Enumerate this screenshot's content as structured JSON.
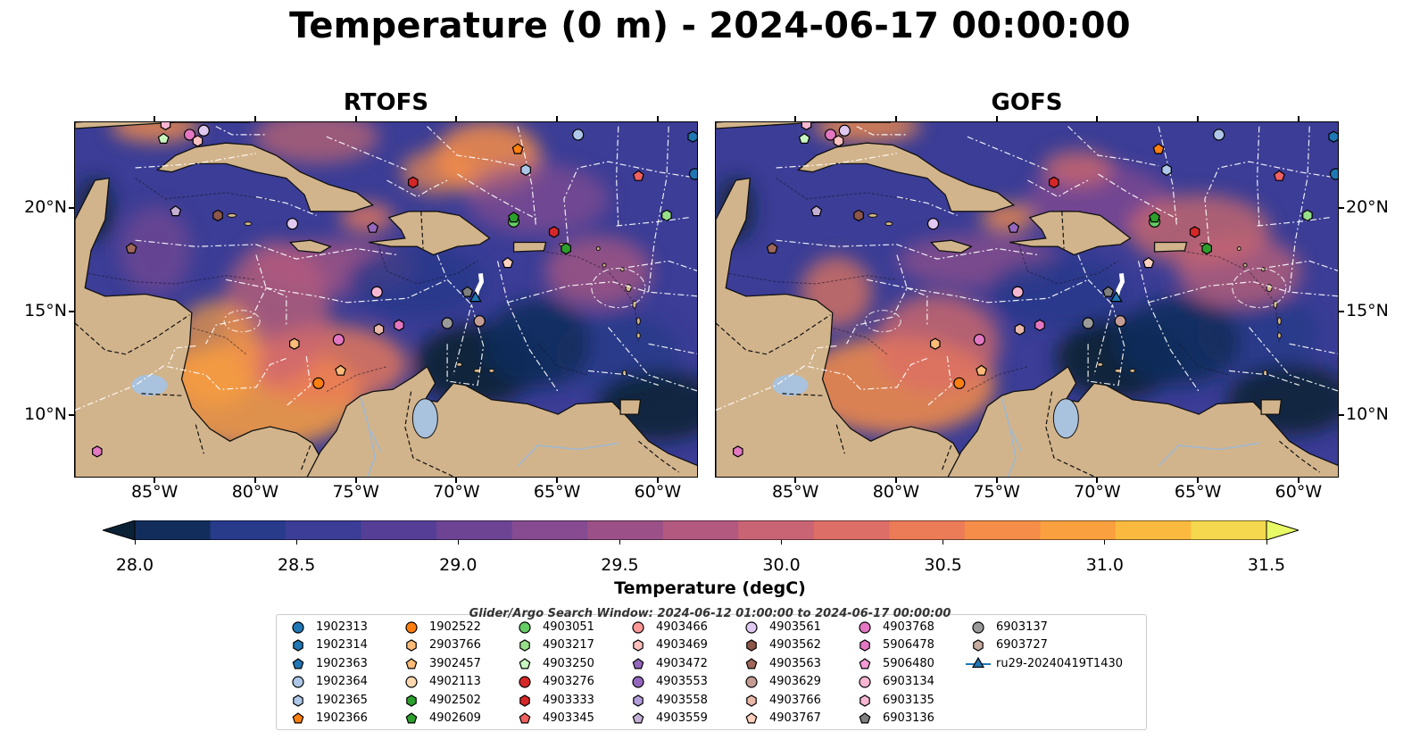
{
  "title": "Temperature (0 m) - 2024-06-17 00:00:00",
  "panels": [
    {
      "name": "RTOFS",
      "variant": "rtofs"
    },
    {
      "name": "GOFS",
      "variant": "gofs"
    }
  ],
  "lon_ticks": [
    "85°W",
    "80°W",
    "75°W",
    "70°W",
    "65°W",
    "60°W"
  ],
  "lon_tick_values": [
    -85,
    -80,
    -75,
    -70,
    -65,
    -60
  ],
  "lat_ticks": [
    "20°N",
    "15°N",
    "10°N"
  ],
  "lat_tick_values": [
    20,
    15,
    10
  ],
  "map_extent": {
    "lon": [
      -89,
      -58
    ],
    "lat": [
      7,
      24.2
    ]
  },
  "colorbar": {
    "label": "Temperature (degC)",
    "range": [
      28.0,
      31.5
    ],
    "ticks": [
      "28.0",
      "28.5",
      "29.0",
      "29.5",
      "30.0",
      "30.5",
      "31.0",
      "31.5"
    ],
    "colors": [
      "#0b2236",
      "#122d5c",
      "#283a8a",
      "#3b3d96",
      "#553f96",
      "#6d4494",
      "#864b90",
      "#9b5188",
      "#b3597f",
      "#c96474",
      "#dc6e67",
      "#ec7b57",
      "#f68d48",
      "#fba03f",
      "#fbba3f",
      "#f5d84d",
      "#e8fa66"
    ],
    "under_color": "#0b2236",
    "over_color": "#e8fa66"
  },
  "colors": {
    "land": "#d2b48c",
    "lake": "#a9c2dd",
    "river": "#a0b8d0",
    "track": "#ffffff"
  },
  "legend_title": "Glider/Argo Search Window: 2024-06-12 01:00:00 to 2024-06-17 00:00:00",
  "legend": [
    {
      "label": "1902313",
      "color": "#1f77b4",
      "shape": "circle"
    },
    {
      "label": "1902314",
      "color": "#1f77b4",
      "shape": "hexagon"
    },
    {
      "label": "1902363",
      "color": "#1f77b4",
      "shape": "pentagon"
    },
    {
      "label": "1902364",
      "color": "#aec7e8",
      "shape": "circle"
    },
    {
      "label": "1902365",
      "color": "#aec7e8",
      "shape": "hexagon"
    },
    {
      "label": "1902366",
      "color": "#ff7f0e",
      "shape": "pentagon"
    },
    {
      "label": "1902522",
      "color": "#ff7f0e",
      "shape": "circle"
    },
    {
      "label": "2903766",
      "color": "#ffbb78",
      "shape": "hexagon"
    },
    {
      "label": "3902457",
      "color": "#ffbb78",
      "shape": "pentagon"
    },
    {
      "label": "4902113",
      "color": "#ffd8b0",
      "shape": "circle"
    },
    {
      "label": "4902502",
      "color": "#2ca02c",
      "shape": "hexagon"
    },
    {
      "label": "4902609",
      "color": "#2ca02c",
      "shape": "pentagon"
    },
    {
      "label": "4903051",
      "color": "#66cc66",
      "shape": "circle"
    },
    {
      "label": "4903217",
      "color": "#98df8a",
      "shape": "hexagon"
    },
    {
      "label": "4903250",
      "color": "#c8f5c0",
      "shape": "pentagon"
    },
    {
      "label": "4903276",
      "color": "#d62728",
      "shape": "circle"
    },
    {
      "label": "4903333",
      "color": "#d62728",
      "shape": "hexagon"
    },
    {
      "label": "4903345",
      "color": "#f06060",
      "shape": "pentagon"
    },
    {
      "label": "4903466",
      "color": "#ff9896",
      "shape": "circle"
    },
    {
      "label": "4903469",
      "color": "#ffc0c0",
      "shape": "hexagon"
    },
    {
      "label": "4903472",
      "color": "#9467bd",
      "shape": "pentagon"
    },
    {
      "label": "4903553",
      "color": "#9467bd",
      "shape": "circle"
    },
    {
      "label": "4903558",
      "color": "#b39ddb",
      "shape": "hexagon"
    },
    {
      "label": "4903559",
      "color": "#c5b0d5",
      "shape": "pentagon"
    },
    {
      "label": "4903561",
      "color": "#e0c8f0",
      "shape": "circle"
    },
    {
      "label": "4903562",
      "color": "#8c564b",
      "shape": "hexagon"
    },
    {
      "label": "4903563",
      "color": "#a0685a",
      "shape": "pentagon"
    },
    {
      "label": "4903629",
      "color": "#c49c94",
      "shape": "circle"
    },
    {
      "label": "4903766",
      "color": "#e8b8a8",
      "shape": "hexagon"
    },
    {
      "label": "4903767",
      "color": "#ffd0c0",
      "shape": "pentagon"
    },
    {
      "label": "4903768",
      "color": "#e377c2",
      "shape": "circle"
    },
    {
      "label": "5906478",
      "color": "#e377c2",
      "shape": "hexagon"
    },
    {
      "label": "5906480",
      "color": "#f49ad4",
      "shape": "pentagon"
    },
    {
      "label": "6903134",
      "color": "#f7b6d2",
      "shape": "circle"
    },
    {
      "label": "6903135",
      "color": "#f7b6d2",
      "shape": "hexagon"
    },
    {
      "label": "6903136",
      "color": "#7f7f7f",
      "shape": "pentagon"
    },
    {
      "label": "6903137",
      "color": "#9a9a9a",
      "shape": "circle"
    },
    {
      "label": "6903727",
      "color": "#c7aca0",
      "shape": "hexagon"
    },
    {
      "label": "ru29-20240419T1430",
      "color": "#1f77b4",
      "shape": "triangle-line"
    }
  ],
  "markers": [
    {
      "label": "6903135",
      "lon": -84.5,
      "lat": 24.1,
      "gofs_shift": [
        0,
        0
      ]
    },
    {
      "label": "4903250",
      "lon": -84.6,
      "lat": 23.4,
      "gofs_shift": [
        0,
        0
      ]
    },
    {
      "label": "4903768",
      "lon": -83.3,
      "lat": 23.6,
      "gofs_shift": [
        0,
        0
      ]
    },
    {
      "label": "4903561",
      "lon": -82.6,
      "lat": 23.8,
      "gofs_shift": [
        0,
        0
      ]
    },
    {
      "label": "4903469",
      "lon": -82.9,
      "lat": 23.3,
      "gofs_shift": [
        0,
        0
      ]
    },
    {
      "label": "4903559",
      "lon": -84.0,
      "lat": 19.9,
      "gofs_shift": [
        0,
        0
      ]
    },
    {
      "label": "4903562",
      "lon": -81.9,
      "lat": 19.7,
      "gofs_shift": [
        0,
        0
      ]
    },
    {
      "label": "4903563",
      "lon": -86.2,
      "lat": 18.1,
      "gofs_shift": [
        0,
        0
      ]
    },
    {
      "label": "4903561",
      "lon": -78.2,
      "lat": 19.3,
      "gofs_shift": [
        0,
        0
      ]
    },
    {
      "label": "4903333",
      "lon": -72.2,
      "lat": 21.3,
      "gofs_shift": [
        0,
        0
      ]
    },
    {
      "label": "4903472",
      "lon": -74.2,
      "lat": 19.1,
      "gofs_shift": [
        0,
        0
      ]
    },
    {
      "label": "4903051",
      "lon": -67.2,
      "lat": 19.4,
      "gofs_shift": [
        0,
        0
      ]
    },
    {
      "label": "4902609",
      "lon": -67.2,
      "lat": 19.6,
      "gofs_shift": [
        0,
        0
      ]
    },
    {
      "label": "1902366",
      "lon": -67.0,
      "lat": 22.9,
      "gofs_shift": [
        0,
        0
      ]
    },
    {
      "label": "1902364",
      "lon": -64.0,
      "lat": 23.6,
      "gofs_shift": [
        0,
        0
      ]
    },
    {
      "label": "1902365",
      "lon": -66.6,
      "lat": 21.9,
      "gofs_shift": [
        0,
        0
      ]
    },
    {
      "label": "4903345",
      "lon": -61.0,
      "lat": 21.6,
      "gofs_shift": [
        0,
        0
      ]
    },
    {
      "label": "1902313",
      "lon": -58.2,
      "lat": 21.7,
      "gofs_shift": [
        0,
        0
      ]
    },
    {
      "label": "1902314",
      "lon": -58.3,
      "lat": 23.5,
      "gofs_shift": [
        0,
        0
      ]
    },
    {
      "label": "4903217",
      "lon": -59.6,
      "lat": 19.7,
      "gofs_shift": [
        0,
        0
      ]
    },
    {
      "label": "4903333",
      "lon": -65.2,
      "lat": 18.9,
      "gofs_shift": [
        0,
        0
      ]
    },
    {
      "label": "4902502",
      "lon": -64.6,
      "lat": 18.1,
      "gofs_shift": [
        0,
        0
      ]
    },
    {
      "label": "4903767",
      "lon": -67.5,
      "lat": 17.4,
      "gofs_shift": [
        0,
        0
      ]
    },
    {
      "label": "6903134",
      "lon": -74.0,
      "lat": 16.0,
      "gofs_shift": [
        0,
        0
      ]
    },
    {
      "label": "6903136",
      "lon": -69.5,
      "lat": 16.0,
      "gofs_shift": [
        0,
        0
      ]
    },
    {
      "label": "6903137",
      "lon": -70.5,
      "lat": 14.5,
      "gofs_shift": [
        0,
        0
      ]
    },
    {
      "label": "4903629",
      "lon": -68.9,
      "lat": 14.6,
      "gofs_shift": [
        0,
        0
      ]
    },
    {
      "label": "5906478",
      "lon": -72.9,
      "lat": 14.4,
      "gofs_shift": [
        0,
        0
      ]
    },
    {
      "label": "4903766",
      "lon": -73.9,
      "lat": 14.2,
      "gofs_shift": [
        0,
        0
      ]
    },
    {
      "label": "4903768",
      "lon": -75.9,
      "lat": 13.7,
      "gofs_shift": [
        0,
        0
      ]
    },
    {
      "label": "2903766",
      "lon": -78.1,
      "lat": 13.5,
      "gofs_shift": [
        0,
        0
      ]
    },
    {
      "label": "3902457",
      "lon": -75.8,
      "lat": 12.2,
      "gofs_shift": [
        0,
        0
      ]
    },
    {
      "label": "1902522",
      "lon": -76.9,
      "lat": 11.6,
      "gofs_shift": [
        0,
        0
      ]
    },
    {
      "label": "5906478",
      "lon": -87.9,
      "lat": 8.3,
      "gofs_shift": [
        0,
        0
      ]
    },
    {
      "label": "ru29-20240419T1430",
      "lon": -69.1,
      "lat": 15.7,
      "gofs_shift": [
        0,
        0
      ]
    }
  ]
}
